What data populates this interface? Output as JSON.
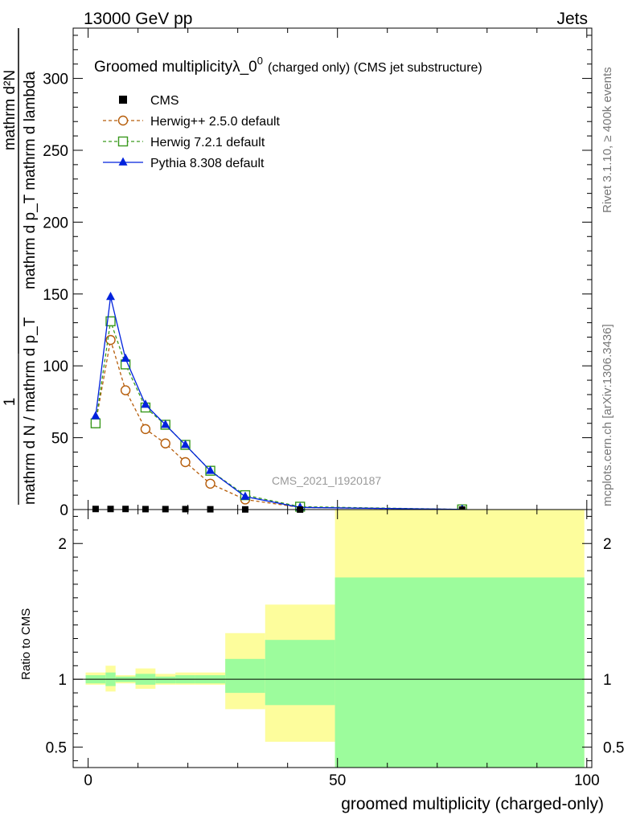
{
  "header": {
    "left": "13000 GeV pp",
    "right": "Jets"
  },
  "side_text": {
    "rivet": "Rivet 3.1.10, ≥ 400k events",
    "mcplots": "mcplots.cern.ch [arXiv:1306.3436]"
  },
  "chart_data": [
    {
      "type": "line",
      "title": "Groomed multiplicityλ_0",
      "title_sup": "0",
      "title_suffix": "(charged only) (CMS jet substructure)",
      "watermark": "CMS_2021_I1920187",
      "ylabel_numerator": "mathrm d²N",
      "ylabel_numerator_sup": "2",
      "ylabel_denominator": "mathrm d p_T mathrm d lambda",
      "ylabel_left_numerator": "1",
      "ylabel_left_denominator": "mathrm d N / mathrm d p_T",
      "xlim": [
        -3,
        101
      ],
      "ylim": [
        0,
        335
      ],
      "yticks": [
        0,
        50,
        100,
        150,
        200,
        250,
        300
      ],
      "legend_position": "top-left",
      "x": [
        1.5,
        4.5,
        7.5,
        11.5,
        15.5,
        19.5,
        24.5,
        31.5,
        42.5,
        75
      ],
      "series": [
        {
          "name": "CMS",
          "marker": "square",
          "color": "#000000",
          "values": [
            0.4,
            0.4,
            0.4,
            0.3,
            0.3,
            0.3,
            0.2,
            0.1,
            0.0,
            0.0
          ]
        },
        {
          "name": "Herwig++ 2.5.0 default",
          "marker": "circle-open",
          "color": "#b65d0a",
          "values": [
            60,
            118,
            83,
            56,
            46,
            33,
            18,
            7,
            1.5,
            0.1
          ]
        },
        {
          "name": "Herwig 7.2.1 default",
          "marker": "square-open",
          "color": "#3a9a1e",
          "values": [
            60,
            131,
            101,
            71,
            59,
            45,
            27,
            10,
            2,
            0.1
          ]
        },
        {
          "name": "Pythia 8.308 default",
          "marker": "triangle",
          "color": "#0022dd",
          "values": [
            65,
            148,
            105,
            73,
            59,
            45,
            27,
            9,
            1.5,
            0.1
          ]
        }
      ]
    },
    {
      "type": "area",
      "ylabel": "Ratio to CMS",
      "xlabel": "groomed multiplicity (charged-only)",
      "xlim": [
        -3,
        101
      ],
      "ylim": [
        0.35,
        2.25
      ],
      "yticks": [
        0.5,
        1,
        2
      ],
      "ytick_labels": [
        "0.5",
        "1",
        "2"
      ],
      "xticks": [
        0,
        50,
        100
      ],
      "xtick_labels": [
        "0",
        "50",
        "100"
      ],
      "reference": 1,
      "bins": [
        {
          "x0": -0.5,
          "x1": 3.5,
          "stat": [
            0.97,
            1.03
          ],
          "total": [
            0.96,
            1.05
          ]
        },
        {
          "x0": 3.5,
          "x1": 5.5,
          "stat": [
            0.95,
            1.05
          ],
          "total": [
            0.91,
            1.1
          ]
        },
        {
          "x0": 5.5,
          "x1": 9.5,
          "stat": [
            0.98,
            1.02
          ],
          "total": [
            0.97,
            1.03
          ]
        },
        {
          "x0": 9.5,
          "x1": 13.5,
          "stat": [
            0.96,
            1.04
          ],
          "total": [
            0.93,
            1.08
          ]
        },
        {
          "x0": 13.5,
          "x1": 17.5,
          "stat": [
            0.97,
            1.02
          ],
          "total": [
            0.96,
            1.04
          ]
        },
        {
          "x0": 17.5,
          "x1": 21.5,
          "stat": [
            0.97,
            1.03
          ],
          "total": [
            0.96,
            1.05
          ]
        },
        {
          "x0": 21.5,
          "x1": 27.5,
          "stat": [
            0.97,
            1.03
          ],
          "total": [
            0.96,
            1.05
          ]
        },
        {
          "x0": 27.5,
          "x1": 35.5,
          "stat": [
            0.9,
            1.15
          ],
          "total": [
            0.78,
            1.34
          ]
        },
        {
          "x0": 35.5,
          "x1": 49.5,
          "stat": [
            0.81,
            1.29
          ],
          "total": [
            0.54,
            1.55
          ]
        },
        {
          "x0": 49.5,
          "x1": 99.5,
          "stat": [
            0.35,
            1.75
          ],
          "total": [
            0.35,
            2.25
          ]
        }
      ],
      "colors": {
        "stat": "#9cfc9c",
        "total": "#fdfd9c"
      }
    }
  ]
}
